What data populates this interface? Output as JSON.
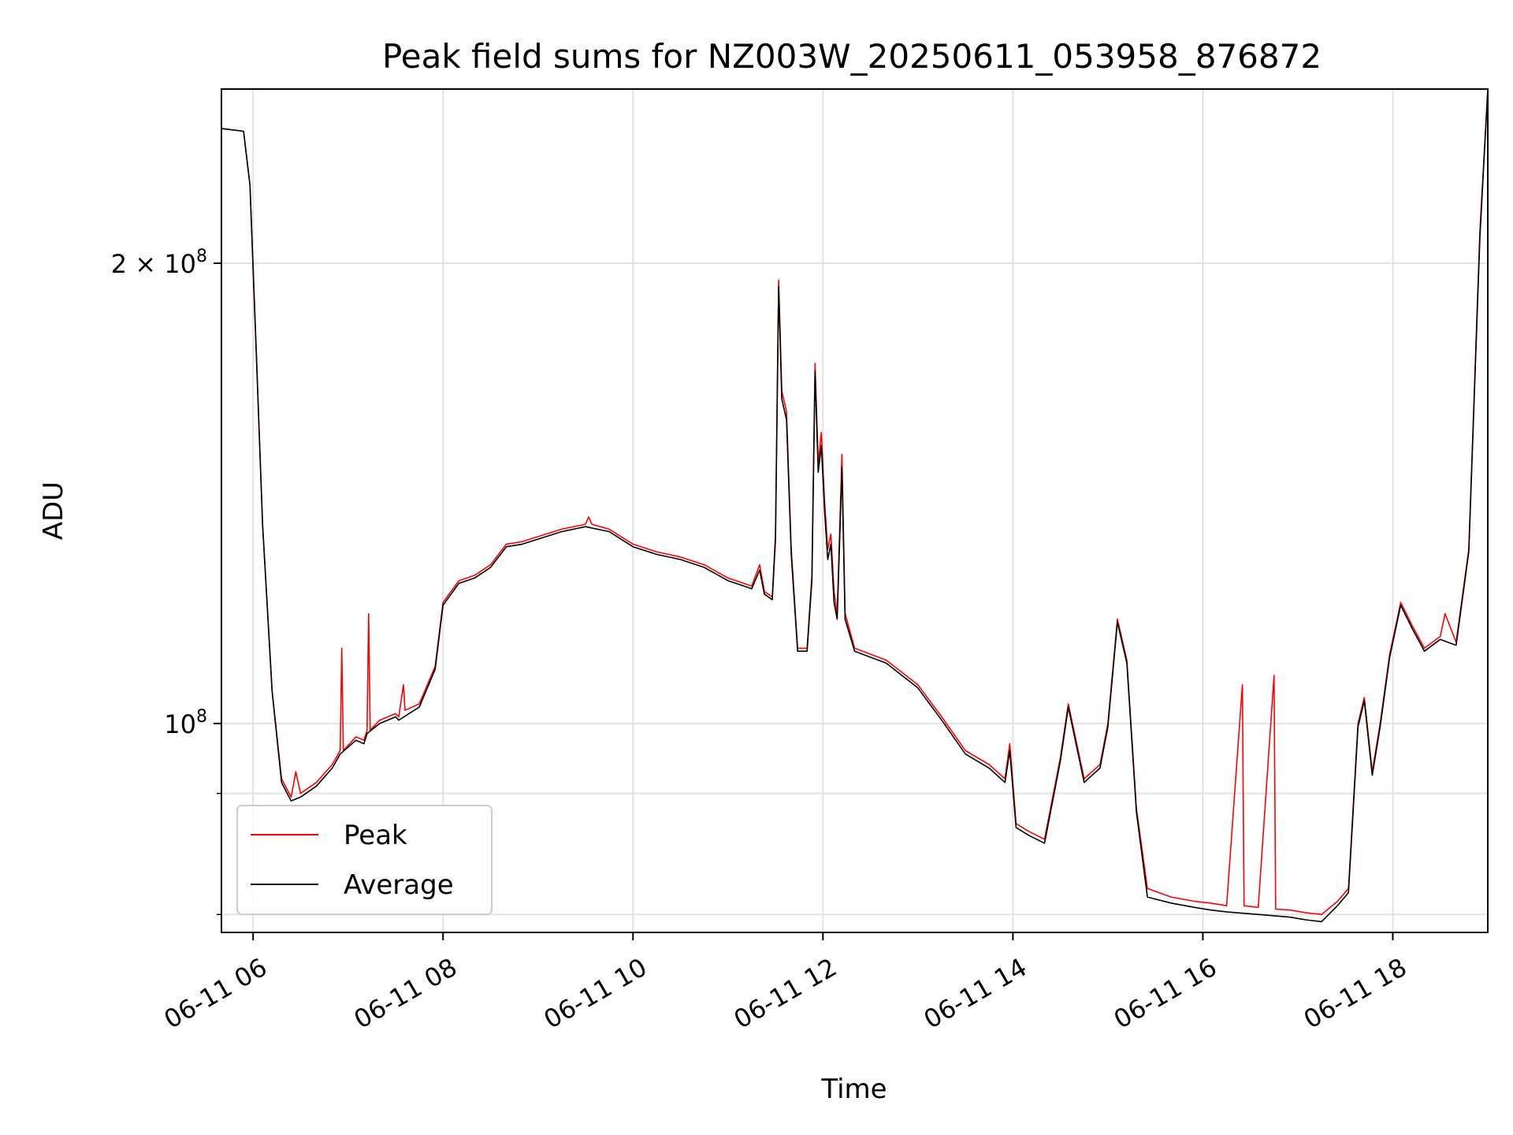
{
  "chart_data": {
    "type": "line",
    "title": "Peak field sums for NZ003W_20250611_053958_876872",
    "xlabel": "Time",
    "ylabel": "ADU",
    "xlim": [
      "2025-06-11 05:40",
      "2025-06-11 19:00"
    ],
    "ylim": [
      73000000,
      260000000
    ],
    "yscale": "log",
    "x_ticks": [
      {
        "t": "2025-06-11 06:00",
        "label": "06-11 06"
      },
      {
        "t": "2025-06-11 08:00",
        "label": "06-11 08"
      },
      {
        "t": "2025-06-11 10:00",
        "label": "06-11 10"
      },
      {
        "t": "2025-06-11 12:00",
        "label": "06-11 12"
      },
      {
        "t": "2025-06-11 14:00",
        "label": "06-11 14"
      },
      {
        "t": "2025-06-11 16:00",
        "label": "06-11 16"
      },
      {
        "t": "2025-06-11 18:00",
        "label": "06-11 18"
      }
    ],
    "y_ticks_major": [
      {
        "value": 100000000,
        "base": "10",
        "exp": "8",
        "label": ""
      },
      {
        "value": 200000000,
        "base": "10",
        "exp": "8",
        "label": "2 × "
      }
    ],
    "y_ticks_minor": [
      75000000,
      90000000
    ],
    "grid": true,
    "legend_position": "lower-left",
    "series": [
      {
        "name": "Peak",
        "color": "#ff0000",
        "points": [
          [
            "2025-06-11 05:40",
            245000000
          ],
          [
            "2025-06-11 05:54",
            244000000
          ],
          [
            "2025-06-11 05:58",
            225000000
          ],
          [
            "2025-06-11 06:02",
            175000000
          ],
          [
            "2025-06-11 06:06",
            135000000
          ],
          [
            "2025-06-11 06:12",
            105000000
          ],
          [
            "2025-06-11 06:18",
            92000000
          ],
          [
            "2025-06-11 06:24",
            89500000
          ],
          [
            "2025-06-11 06:27",
            93000000
          ],
          [
            "2025-06-11 06:30",
            90000000
          ],
          [
            "2025-06-11 06:40",
            91500000
          ],
          [
            "2025-06-11 06:50",
            94000000
          ],
          [
            "2025-06-11 06:55",
            96000000
          ],
          [
            "2025-06-11 06:56",
            112000000
          ],
          [
            "2025-06-11 06:57",
            96000000
          ],
          [
            "2025-06-11 07:05",
            98000000
          ],
          [
            "2025-06-11 07:10",
            97500000
          ],
          [
            "2025-06-11 07:12",
            99000000
          ],
          [
            "2025-06-11 07:13",
            118000000
          ],
          [
            "2025-06-11 07:14",
            99000000
          ],
          [
            "2025-06-11 07:20",
            100500000
          ],
          [
            "2025-06-11 07:30",
            101500000
          ],
          [
            "2025-06-11 07:32",
            101000000
          ],
          [
            "2025-06-11 07:35",
            106000000
          ],
          [
            "2025-06-11 07:36",
            102000000
          ],
          [
            "2025-06-11 07:45",
            103000000
          ],
          [
            "2025-06-11 07:55",
            109000000
          ],
          [
            "2025-06-11 08:00",
            120000000
          ],
          [
            "2025-06-11 08:10",
            124000000
          ],
          [
            "2025-06-11 08:20",
            125000000
          ],
          [
            "2025-06-11 08:30",
            127000000
          ],
          [
            "2025-06-11 08:40",
            131000000
          ],
          [
            "2025-06-11 08:50",
            131500000
          ],
          [
            "2025-06-11 09:00",
            132500000
          ],
          [
            "2025-06-11 09:15",
            134000000
          ],
          [
            "2025-06-11 09:30",
            135000000
          ],
          [
            "2025-06-11 09:32",
            136500000
          ],
          [
            "2025-06-11 09:34",
            135000000
          ],
          [
            "2025-06-11 09:45",
            134000000
          ],
          [
            "2025-06-11 10:00",
            131000000
          ],
          [
            "2025-06-11 10:15",
            129500000
          ],
          [
            "2025-06-11 10:30",
            128500000
          ],
          [
            "2025-06-11 10:45",
            127000000
          ],
          [
            "2025-06-11 11:00",
            124500000
          ],
          [
            "2025-06-11 11:15",
            123000000
          ],
          [
            "2025-06-11 11:20",
            127000000
          ],
          [
            "2025-06-11 11:23",
            122000000
          ],
          [
            "2025-06-11 11:28",
            121000000
          ],
          [
            "2025-06-11 11:30",
            133000000
          ],
          [
            "2025-06-11 11:32",
            195000000
          ],
          [
            "2025-06-11 11:34",
            165000000
          ],
          [
            "2025-06-11 11:37",
            160000000
          ],
          [
            "2025-06-11 11:40",
            130000000
          ],
          [
            "2025-06-11 11:44",
            112000000
          ],
          [
            "2025-06-11 11:50",
            112000000
          ],
          [
            "2025-06-11 11:53",
            125000000
          ],
          [
            "2025-06-11 11:55",
            172000000
          ],
          [
            "2025-06-11 11:57",
            148000000
          ],
          [
            "2025-06-11 11:59",
            155000000
          ],
          [
            "2025-06-11 12:01",
            140000000
          ],
          [
            "2025-06-11 12:03",
            130000000
          ],
          [
            "2025-06-11 12:05",
            133000000
          ],
          [
            "2025-06-11 12:07",
            122000000
          ],
          [
            "2025-06-11 12:09",
            118000000
          ],
          [
            "2025-06-11 12:12",
            150000000
          ],
          [
            "2025-06-11 12:14",
            118000000
          ],
          [
            "2025-06-11 12:20",
            112000000
          ],
          [
            "2025-06-11 12:40",
            110000000
          ],
          [
            "2025-06-11 13:00",
            106000000
          ],
          [
            "2025-06-11 13:15",
            101000000
          ],
          [
            "2025-06-11 13:30",
            96000000
          ],
          [
            "2025-06-11 13:45",
            94000000
          ],
          [
            "2025-06-11 13:55",
            92000000
          ],
          [
            "2025-06-11 13:58",
            97000000
          ],
          [
            "2025-06-11 14:02",
            86000000
          ],
          [
            "2025-06-11 14:10",
            85000000
          ],
          [
            "2025-06-11 14:20",
            84000000
          ],
          [
            "2025-06-11 14:30",
            95000000
          ],
          [
            "2025-06-11 14:35",
            103000000
          ],
          [
            "2025-06-11 14:45",
            92000000
          ],
          [
            "2025-06-11 14:55",
            94000000
          ],
          [
            "2025-06-11 15:00",
            100000000
          ],
          [
            "2025-06-11 15:06",
            117000000
          ],
          [
            "2025-06-11 15:12",
            110000000
          ],
          [
            "2025-06-11 15:18",
            88000000
          ],
          [
            "2025-06-11 15:25",
            78000000
          ],
          [
            "2025-06-11 15:40",
            77000000
          ],
          [
            "2025-06-11 15:55",
            76500000
          ],
          [
            "2025-06-11 16:05",
            76300000
          ],
          [
            "2025-06-11 16:15",
            76000000
          ],
          [
            "2025-06-11 16:25",
            106000000
          ],
          [
            "2025-06-11 16:26",
            76000000
          ],
          [
            "2025-06-11 16:35",
            75800000
          ],
          [
            "2025-06-11 16:45",
            107500000
          ],
          [
            "2025-06-11 16:46",
            75600000
          ],
          [
            "2025-06-11 16:55",
            75500000
          ],
          [
            "2025-06-11 17:05",
            75200000
          ],
          [
            "2025-06-11 17:15",
            75000000
          ],
          [
            "2025-06-11 17:25",
            76500000
          ],
          [
            "2025-06-11 17:32",
            78000000
          ],
          [
            "2025-06-11 17:38",
            100000000
          ],
          [
            "2025-06-11 17:42",
            104000000
          ],
          [
            "2025-06-11 17:47",
            93000000
          ],
          [
            "2025-06-11 17:52",
            100000000
          ],
          [
            "2025-06-11 17:58",
            111000000
          ],
          [
            "2025-06-11 18:05",
            120000000
          ],
          [
            "2025-06-11 18:12",
            116000000
          ],
          [
            "2025-06-11 18:20",
            112000000
          ],
          [
            "2025-06-11 18:30",
            114000000
          ],
          [
            "2025-06-11 18:33",
            118000000
          ],
          [
            "2025-06-11 18:40",
            113000000
          ],
          [
            "2025-06-11 18:48",
            130000000
          ],
          [
            "2025-06-11 18:55",
            210000000
          ],
          [
            "2025-06-11 19:00",
            260000000
          ]
        ]
      },
      {
        "name": "Average",
        "color": "#000000",
        "points": [
          [
            "2025-06-11 05:40",
            245000000
          ],
          [
            "2025-06-11 05:54",
            244000000
          ],
          [
            "2025-06-11 05:58",
            225000000
          ],
          [
            "2025-06-11 06:02",
            175000000
          ],
          [
            "2025-06-11 06:06",
            135000000
          ],
          [
            "2025-06-11 06:12",
            105000000
          ],
          [
            "2025-06-11 06:18",
            91500000
          ],
          [
            "2025-06-11 06:24",
            89000000
          ],
          [
            "2025-06-11 06:30",
            89500000
          ],
          [
            "2025-06-11 06:40",
            91000000
          ],
          [
            "2025-06-11 06:50",
            93500000
          ],
          [
            "2025-06-11 06:55",
            95500000
          ],
          [
            "2025-06-11 07:05",
            97500000
          ],
          [
            "2025-06-11 07:10",
            97000000
          ],
          [
            "2025-06-11 07:12",
            98500000
          ],
          [
            "2025-06-11 07:20",
            100000000
          ],
          [
            "2025-06-11 07:30",
            101000000
          ],
          [
            "2025-06-11 07:32",
            100500000
          ],
          [
            "2025-06-11 07:45",
            102500000
          ],
          [
            "2025-06-11 07:55",
            108500000
          ],
          [
            "2025-06-11 08:00",
            119500000
          ],
          [
            "2025-06-11 08:10",
            123500000
          ],
          [
            "2025-06-11 08:20",
            124500000
          ],
          [
            "2025-06-11 08:30",
            126500000
          ],
          [
            "2025-06-11 08:40",
            130500000
          ],
          [
            "2025-06-11 08:50",
            131000000
          ],
          [
            "2025-06-11 09:00",
            132000000
          ],
          [
            "2025-06-11 09:15",
            133500000
          ],
          [
            "2025-06-11 09:30",
            134500000
          ],
          [
            "2025-06-11 09:45",
            133500000
          ],
          [
            "2025-06-11 10:00",
            130500000
          ],
          [
            "2025-06-11 10:15",
            129000000
          ],
          [
            "2025-06-11 10:30",
            128000000
          ],
          [
            "2025-06-11 10:45",
            126500000
          ],
          [
            "2025-06-11 11:00",
            124000000
          ],
          [
            "2025-06-11 11:15",
            122500000
          ],
          [
            "2025-06-11 11:20",
            126000000
          ],
          [
            "2025-06-11 11:23",
            121500000
          ],
          [
            "2025-06-11 11:28",
            120500000
          ],
          [
            "2025-06-11 11:30",
            132000000
          ],
          [
            "2025-06-11 11:32",
            193000000
          ],
          [
            "2025-06-11 11:34",
            163000000
          ],
          [
            "2025-06-11 11:37",
            158000000
          ],
          [
            "2025-06-11 11:40",
            129000000
          ],
          [
            "2025-06-11 11:44",
            111500000
          ],
          [
            "2025-06-11 11:50",
            111500000
          ],
          [
            "2025-06-11 11:53",
            124000000
          ],
          [
            "2025-06-11 11:55",
            170000000
          ],
          [
            "2025-06-11 11:57",
            146000000
          ],
          [
            "2025-06-11 11:59",
            152000000
          ],
          [
            "2025-06-11 12:01",
            138000000
          ],
          [
            "2025-06-11 12:03",
            128000000
          ],
          [
            "2025-06-11 12:05",
            131000000
          ],
          [
            "2025-06-11 12:07",
            120000000
          ],
          [
            "2025-06-11 12:09",
            117000000
          ],
          [
            "2025-06-11 12:12",
            147000000
          ],
          [
            "2025-06-11 12:14",
            117000000
          ],
          [
            "2025-06-11 12:20",
            111500000
          ],
          [
            "2025-06-11 12:40",
            109500000
          ],
          [
            "2025-06-11 13:00",
            105500000
          ],
          [
            "2025-06-11 13:15",
            100500000
          ],
          [
            "2025-06-11 13:30",
            95500000
          ],
          [
            "2025-06-11 13:45",
            93500000
          ],
          [
            "2025-06-11 13:55",
            91500000
          ],
          [
            "2025-06-11 13:58",
            96000000
          ],
          [
            "2025-06-11 14:02",
            85500000
          ],
          [
            "2025-06-11 14:10",
            84500000
          ],
          [
            "2025-06-11 14:20",
            83500000
          ],
          [
            "2025-06-11 14:30",
            94500000
          ],
          [
            "2025-06-11 14:35",
            102500000
          ],
          [
            "2025-06-11 14:45",
            91500000
          ],
          [
            "2025-06-11 14:55",
            93500000
          ],
          [
            "2025-06-11 15:00",
            99500000
          ],
          [
            "2025-06-11 15:06",
            116500000
          ],
          [
            "2025-06-11 15:12",
            109500000
          ],
          [
            "2025-06-11 15:18",
            87500000
          ],
          [
            "2025-06-11 15:25",
            77000000
          ],
          [
            "2025-06-11 15:40",
            76300000
          ],
          [
            "2025-06-11 15:55",
            75800000
          ],
          [
            "2025-06-11 16:05",
            75500000
          ],
          [
            "2025-06-11 16:15",
            75300000
          ],
          [
            "2025-06-11 16:35",
            75000000
          ],
          [
            "2025-06-11 16:55",
            74700000
          ],
          [
            "2025-06-11 17:05",
            74400000
          ],
          [
            "2025-06-11 17:15",
            74200000
          ],
          [
            "2025-06-11 17:25",
            76000000
          ],
          [
            "2025-06-11 17:32",
            77500000
          ],
          [
            "2025-06-11 17:38",
            99500000
          ],
          [
            "2025-06-11 17:42",
            103500000
          ],
          [
            "2025-06-11 17:47",
            92500000
          ],
          [
            "2025-06-11 17:52",
            99500000
          ],
          [
            "2025-06-11 17:58",
            110500000
          ],
          [
            "2025-06-11 18:05",
            119500000
          ],
          [
            "2025-06-11 18:12",
            115500000
          ],
          [
            "2025-06-11 18:20",
            111500000
          ],
          [
            "2025-06-11 18:30",
            113500000
          ],
          [
            "2025-06-11 18:40",
            112500000
          ],
          [
            "2025-06-11 18:48",
            129500000
          ],
          [
            "2025-06-11 18:55",
            208000000
          ],
          [
            "2025-06-11 19:00",
            260000000
          ]
        ]
      }
    ]
  }
}
